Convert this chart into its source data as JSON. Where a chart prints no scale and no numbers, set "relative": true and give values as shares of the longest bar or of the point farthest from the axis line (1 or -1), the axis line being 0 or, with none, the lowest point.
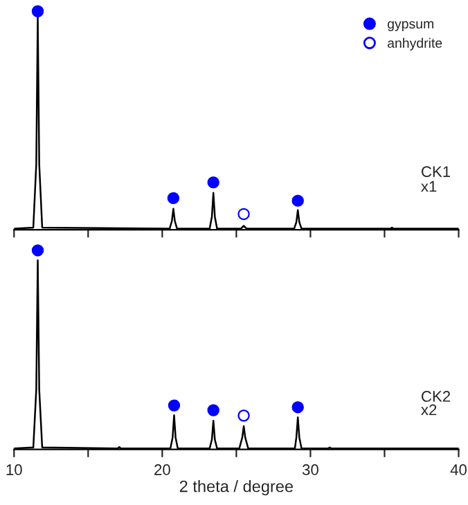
{
  "chart_data": [
    {
      "type": "line",
      "relative": true,
      "xlim": [
        10,
        40
      ],
      "xticks": [
        10,
        {
          "value": 15,
          "label": null
        },
        20,
        {
          "value": 25,
          "label": null
        },
        30,
        {
          "value": 35,
          "label": null
        },
        40
      ],
      "tick_labels": false,
      "legend": "top right",
      "annotations": [
        "CK1",
        "x1"
      ],
      "series": [
        {
          "color": "#000000",
          "x": [
            10,
            11.3,
            11.5,
            11.6,
            11.7,
            11.9,
            20.5,
            20.65,
            20.75,
            20.85,
            21.0,
            23.2,
            23.35,
            23.45,
            23.55,
            23.7,
            25.3,
            25.5,
            25.7,
            28.9,
            29.05,
            29.15,
            29.25,
            29.4,
            35.4,
            35.5,
            35.6,
            40
          ],
          "values": [
            0.005,
            0.01,
            0.3,
            0.976,
            0.3,
            0.01,
            0.005,
            0.04,
            0.096,
            0.04,
            0.005,
            0.005,
            0.06,
            0.169,
            0.06,
            0.005,
            0.005,
            0.018,
            0.005,
            0.005,
            0.035,
            0.09,
            0.035,
            0.005,
            0.005,
            0.01,
            0.005,
            0.005
          ]
        },
        {
          "type": "scatter",
          "name": "gypsum",
          "color": "#0000ff",
          "marker": "circle",
          "x": [
            11.6,
            20.75,
            23.45,
            29.15
          ],
          "values": [
            1,
            0.145,
            0.217,
            0.133
          ]
        },
        {
          "type": "scatter",
          "name": "anhydrite",
          "color": "#0000ff",
          "marker": "circle",
          "x": [
            25.5
          ],
          "values": [
            0.072
          ]
        }
      ]
    },
    {
      "type": "line",
      "relative": true,
      "xlim": [
        10,
        40
      ],
      "xticks": [
        10,
        {
          "value": 15,
          "label": null
        },
        20,
        {
          "value": 25,
          "label": null
        },
        30,
        {
          "value": 35,
          "label": null
        },
        40
      ],
      "tick_labels": "x",
      "xlabel": "2 theta / degree",
      "annotations": [
        "CK2",
        "x2"
      ],
      "series": [
        {
          "color": "#000000",
          "x": [
            10,
            11.3,
            11.5,
            11.6,
            11.7,
            11.9,
            17.0,
            17.1,
            17.2,
            20.55,
            20.7,
            20.8,
            20.9,
            21.05,
            23.2,
            23.35,
            23.45,
            23.55,
            23.7,
            25.2,
            25.4,
            25.5,
            25.6,
            25.8,
            28.95,
            29.05,
            29.15,
            29.25,
            29.4,
            31.2,
            31.3,
            31.4,
            40
          ],
          "values": [
            0.005,
            0.01,
            0.3,
            0.95,
            0.3,
            0.01,
            0.005,
            0.012,
            0.005,
            0.005,
            0.06,
            0.172,
            0.06,
            0.005,
            0.005,
            0.05,
            0.144,
            0.05,
            0.005,
            0.005,
            0.06,
            0.117,
            0.06,
            0.005,
            0.005,
            0.06,
            0.161,
            0.06,
            0.005,
            0.005,
            0.01,
            0.005,
            0.005
          ]
        },
        {
          "type": "scatter",
          "color": "#0000ff",
          "marker": "circle",
          "x": [
            11.6,
            20.8,
            23.45,
            29.15
          ],
          "values": [
            1,
            0.221,
            0.197,
            0.212
          ]
        },
        {
          "type": "scatter",
          "color": "#0000ff",
          "marker": "circle",
          "x": [
            25.5
          ],
          "values": [
            0.17
          ]
        }
      ]
    }
  ]
}
